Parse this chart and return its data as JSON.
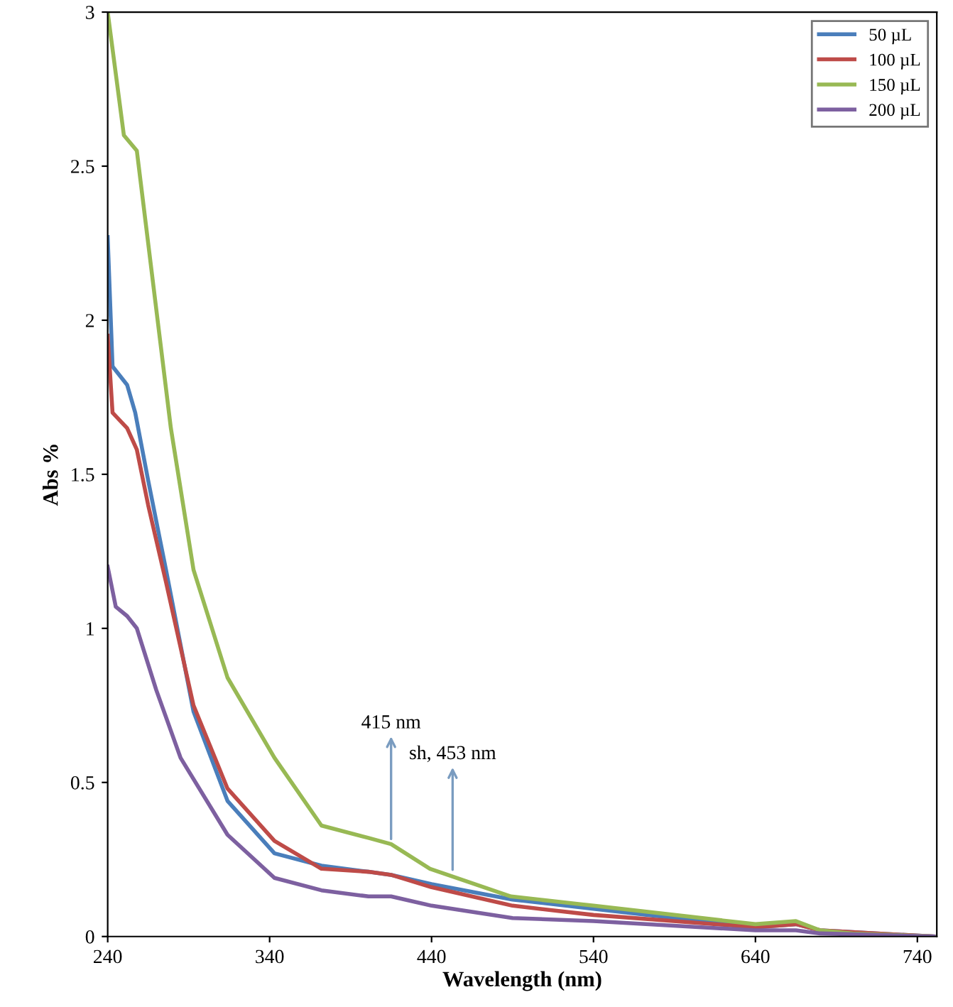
{
  "chart_data": {
    "type": "line",
    "xlabel": "Wavelength (nm)",
    "ylabel": "Abs %",
    "xlim": [
      240,
      752
    ],
    "ylim": [
      0,
      3
    ],
    "xticks": [
      240,
      340,
      440,
      540,
      640,
      740
    ],
    "yticks": [
      0,
      0.5,
      1,
      1.5,
      2,
      2.5,
      3
    ],
    "legend": "top right",
    "grid": false,
    "marker": "none",
    "line_style": "solid",
    "series": [
      {
        "name": "50 µL",
        "color": "#4a7ebb",
        "x": [
          240,
          243,
          252,
          257,
          265,
          276,
          293,
          314,
          343,
          372,
          401,
          415,
          440,
          490,
          540,
          640,
          665,
          680,
          750
        ],
        "values": [
          2.27,
          1.85,
          1.79,
          1.7,
          1.48,
          1.19,
          0.73,
          0.44,
          0.27,
          0.23,
          0.21,
          0.2,
          0.17,
          0.12,
          0.09,
          0.03,
          0.04,
          0.02,
          0
        ]
      },
      {
        "name": "100 µL",
        "color": "#be4b48",
        "x": [
          240,
          243,
          252,
          258,
          265,
          276,
          293,
          314,
          343,
          372,
          401,
          415,
          440,
          490,
          540,
          640,
          665,
          680,
          750
        ],
        "values": [
          1.95,
          1.7,
          1.65,
          1.58,
          1.4,
          1.15,
          0.75,
          0.48,
          0.31,
          0.22,
          0.21,
          0.2,
          0.16,
          0.1,
          0.07,
          0.03,
          0.04,
          0.02,
          0
        ]
      },
      {
        "name": "150 µL",
        "color": "#98b954",
        "x": [
          240,
          250,
          258,
          279,
          293,
          314,
          343,
          372,
          401,
          415,
          439,
          489,
          540,
          640,
          665,
          680,
          700,
          750
        ],
        "values": [
          3.0,
          2.6,
          2.55,
          1.65,
          1.19,
          0.84,
          0.58,
          0.36,
          0.32,
          0.3,
          0.22,
          0.13,
          0.1,
          0.04,
          0.05,
          0.02,
          0.01,
          0
        ]
      },
      {
        "name": "200 µL",
        "color": "#7d60a0",
        "x": [
          240,
          245,
          252,
          258,
          270,
          285,
          314,
          343,
          372,
          401,
          415,
          440,
          490,
          540,
          640,
          665,
          680,
          750
        ],
        "values": [
          1.2,
          1.07,
          1.04,
          1.0,
          0.8,
          0.58,
          0.33,
          0.19,
          0.15,
          0.13,
          0.13,
          0.1,
          0.06,
          0.05,
          0.02,
          0.02,
          0.01,
          0
        ]
      }
    ],
    "annotations": [
      {
        "text": "415 nm",
        "x": 415,
        "y": 0.31
      },
      {
        "text": "sh, 453 nm",
        "x": 453,
        "y": 0.21
      }
    ]
  }
}
